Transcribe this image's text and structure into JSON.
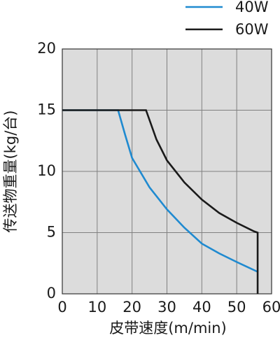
{
  "chart_data": {
    "type": "line",
    "x_label": "皮带速度(m/min)",
    "y_label": "传送物重量(kg/台)",
    "xlim": [
      0,
      60
    ],
    "ylim": [
      0,
      20
    ],
    "xticks": [
      0,
      10,
      20,
      30,
      40,
      50,
      60
    ],
    "yticks": [
      0,
      5,
      10,
      15,
      20
    ],
    "grid": true,
    "legend": "top-right",
    "series": [
      {
        "name": "40W",
        "color": "#1f8ad0",
        "x": [
          0,
          16,
          18,
          20,
          25,
          30,
          35,
          40,
          45,
          50,
          56
        ],
        "values": [
          15,
          15,
          13,
          11.1,
          8.7,
          6.9,
          5.4,
          4.1,
          3.3,
          2.6,
          1.8
        ]
      },
      {
        "name": "60W",
        "color": "#1a1a1a",
        "x": [
          0,
          24,
          27,
          30,
          35,
          40,
          45,
          50,
          55,
          56,
          56
        ],
        "values": [
          15,
          15,
          12.6,
          10.9,
          9.1,
          7.7,
          6.6,
          5.8,
          5.1,
          5,
          0
        ]
      }
    ]
  }
}
